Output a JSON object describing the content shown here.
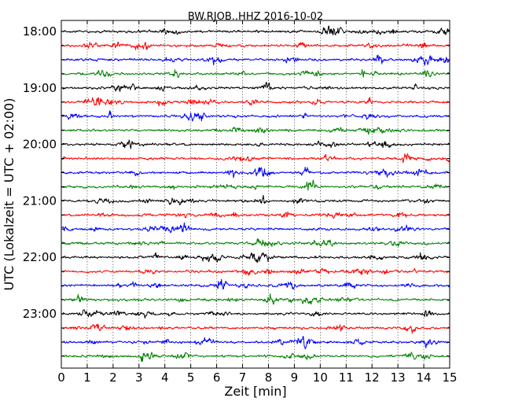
{
  "chart_data": {
    "type": "line",
    "subtype": "dayplot",
    "title": "BW.RJOB..HHZ 2016-10-02",
    "xlabel": "Zeit  [min]",
    "ylabel": "UTC (Lokalzeit = UTC + 02:00)",
    "xlim": [
      0,
      15
    ],
    "x_ticks": [
      "0",
      "1",
      "2",
      "3",
      "4",
      "5",
      "6",
      "7",
      "8",
      "9",
      "10",
      "11",
      "12",
      "13",
      "14",
      "15"
    ],
    "y_tick_labels": [
      "18:00",
      "19:00",
      "20:00",
      "21:00",
      "22:00",
      "23:00"
    ],
    "minutes_per_row": 15,
    "row_count": 24,
    "first_row_start": "18:00",
    "grid": {
      "x": true,
      "style": "dotted"
    },
    "series": [
      {
        "color": "#000000",
        "rows": [
          "18:00",
          "19:00",
          "20:00",
          "21:00",
          "22:00",
          "23:00"
        ]
      },
      {
        "color": "#ff0000",
        "rows": [
          "18:15",
          "19:15",
          "20:15",
          "21:15",
          "22:15",
          "23:15"
        ]
      },
      {
        "color": "#0000ff",
        "rows": [
          "18:30",
          "19:30",
          "20:30",
          "21:30",
          "22:30",
          "23:30"
        ]
      },
      {
        "color": "#008000",
        "rows": [
          "18:45",
          "19:45",
          "20:45",
          "21:45",
          "22:45",
          "23:45"
        ]
      }
    ],
    "events": [
      {
        "row": 21,
        "minute": 1.3,
        "amplitude": 0.55
      },
      {
        "row": 19,
        "minute": 4.7,
        "amplitude": 0.45
      },
      {
        "row": 20,
        "minute": 14.15,
        "amplitude": 0.6
      },
      {
        "row": 22,
        "minute": 14.15,
        "amplitude": 0.45
      },
      {
        "row": 23,
        "minute": 13.4,
        "amplitude": 0.5
      },
      {
        "row": 22,
        "minute": 4.0,
        "amplitude": 0.4
      },
      {
        "row": 19,
        "minute": 6.6,
        "amplitude": 0.4
      }
    ]
  }
}
